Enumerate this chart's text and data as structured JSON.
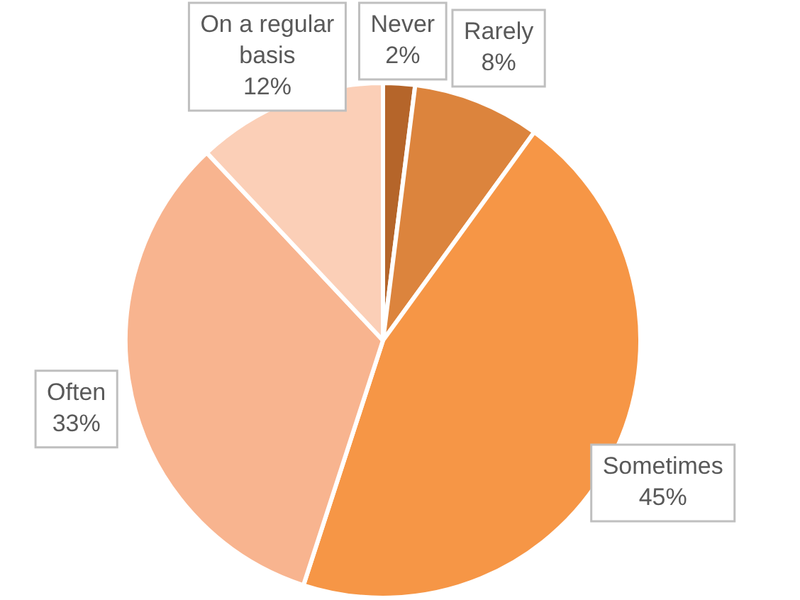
{
  "chart_data": {
    "type": "pie",
    "categories": [
      "Never",
      "Rarely",
      "Sometimes",
      "Often",
      "On a regular basis"
    ],
    "values": [
      2,
      8,
      45,
      33,
      12
    ],
    "value_labels": [
      "2%",
      "8%",
      "45%",
      "33%",
      "12%"
    ],
    "colors": [
      "#b5652a",
      "#dc843d",
      "#f69646",
      "#f8b48f",
      "#fbcfb7"
    ],
    "legend": false
  }
}
